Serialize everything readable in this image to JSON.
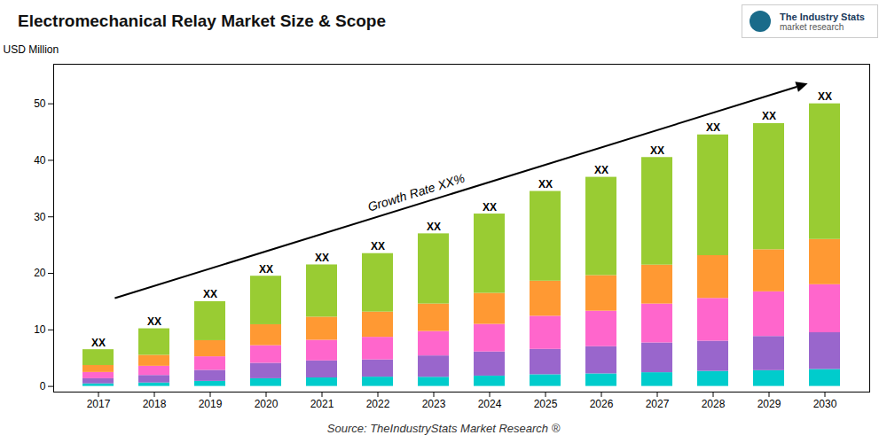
{
  "chart_data": {
    "type": "bar",
    "title": "Electromechanical Relay Market Size & Scope",
    "ylabel": "USD Million",
    "caption": "Source: TheIndustryStats Market Research ®",
    "logo_text": [
      "The Industry Stats",
      "market research"
    ],
    "categories": [
      "2017",
      "2018",
      "2019",
      "2020",
      "2021",
      "2022",
      "2023",
      "2024",
      "2025",
      "2026",
      "2027",
      "2028",
      "2029",
      "2030"
    ],
    "stacked": true,
    "series": [
      {
        "color": "#00CCCC",
        "values": [
          0.455,
          0.612,
          0.9,
          1.365,
          1.505,
          1.645,
          1.62,
          1.83,
          2.07,
          2.22,
          2.43,
          2.67,
          2.79,
          3
        ]
      },
      {
        "color": "#9966CC",
        "values": [
          0.91,
          1.326,
          1.95,
          2.73,
          3.01,
          3.055,
          3.78,
          4.27,
          4.485,
          4.81,
          5.265,
          5.34,
          6.045,
          6.5
        ]
      },
      {
        "color": "#FF66CC",
        "values": [
          1.105,
          1.632,
          2.4,
          3.12,
          3.655,
          3.995,
          4.32,
          4.88,
          5.865,
          6.29,
          6.885,
          7.565,
          7.905,
          8.5
        ]
      },
      {
        "color": "#FF9933",
        "values": [
          1.235,
          1.938,
          2.85,
          3.705,
          4.085,
          4.465,
          4.86,
          5.49,
          6.21,
          6.29,
          6.885,
          7.565,
          7.44,
          8
        ]
      },
      {
        "color": "#99CC33",
        "values": [
          2.795,
          4.692,
          6.9,
          8.58,
          9.245,
          10.34,
          12.42,
          14.03,
          15.87,
          17.39,
          19.035,
          21.36,
          22.32,
          24
        ]
      }
    ],
    "bar_labels": [
      "XX",
      "XX",
      "XX",
      "XX",
      "XX",
      "XX",
      "XX",
      "XX",
      "XX",
      "XX",
      "XX",
      "XX",
      "XX",
      "XX"
    ],
    "annotations": [
      "Growth Rate XX%"
    ],
    "ylim": [
      -1,
      57
    ],
    "yticks": [
      0,
      10,
      20,
      30,
      40,
      50
    ],
    "grid": false
  }
}
